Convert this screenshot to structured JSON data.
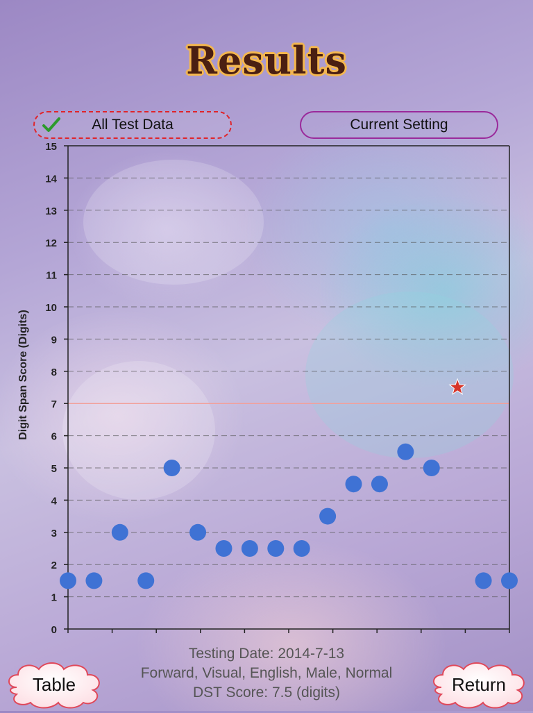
{
  "title": "Results",
  "buttons": {
    "all_test_data": "All Test Data",
    "current_setting": "Current Setting",
    "table": "Table",
    "return": "Return"
  },
  "chart_data": {
    "type": "scatter",
    "ylabel": "Digit Span Score (Digits)",
    "xlabel": "",
    "ylim": [
      0,
      15
    ],
    "yticks": [
      0,
      1,
      2,
      3,
      4,
      5,
      6,
      7,
      8,
      9,
      10,
      11,
      12,
      13,
      14,
      15
    ],
    "grid": true,
    "reference_line": 7,
    "series": [
      {
        "x": [
          1,
          2,
          3,
          4,
          5,
          6,
          7,
          8,
          9,
          10,
          11,
          12,
          13,
          14,
          15,
          17,
          18
        ],
        "values": [
          1.5,
          1.5,
          3,
          1.5,
          5,
          3,
          2.5,
          2.5,
          2.5,
          2.5,
          3.5,
          4.5,
          4.5,
          5.5,
          5,
          1.5,
          1.5
        ]
      }
    ],
    "highlight_point": {
      "x": 16,
      "value": 7.5
    }
  },
  "footer": {
    "testing_date": "Testing Date: 2014-7-13",
    "settings": "Forward, Visual, English, Male, Normal",
    "score": "DST Score: 7.5 (digits)"
  },
  "colors": {
    "point": "#3f72d4",
    "star": "#d7352a",
    "reference_line": "#f2a09a",
    "grid": "#555555"
  }
}
